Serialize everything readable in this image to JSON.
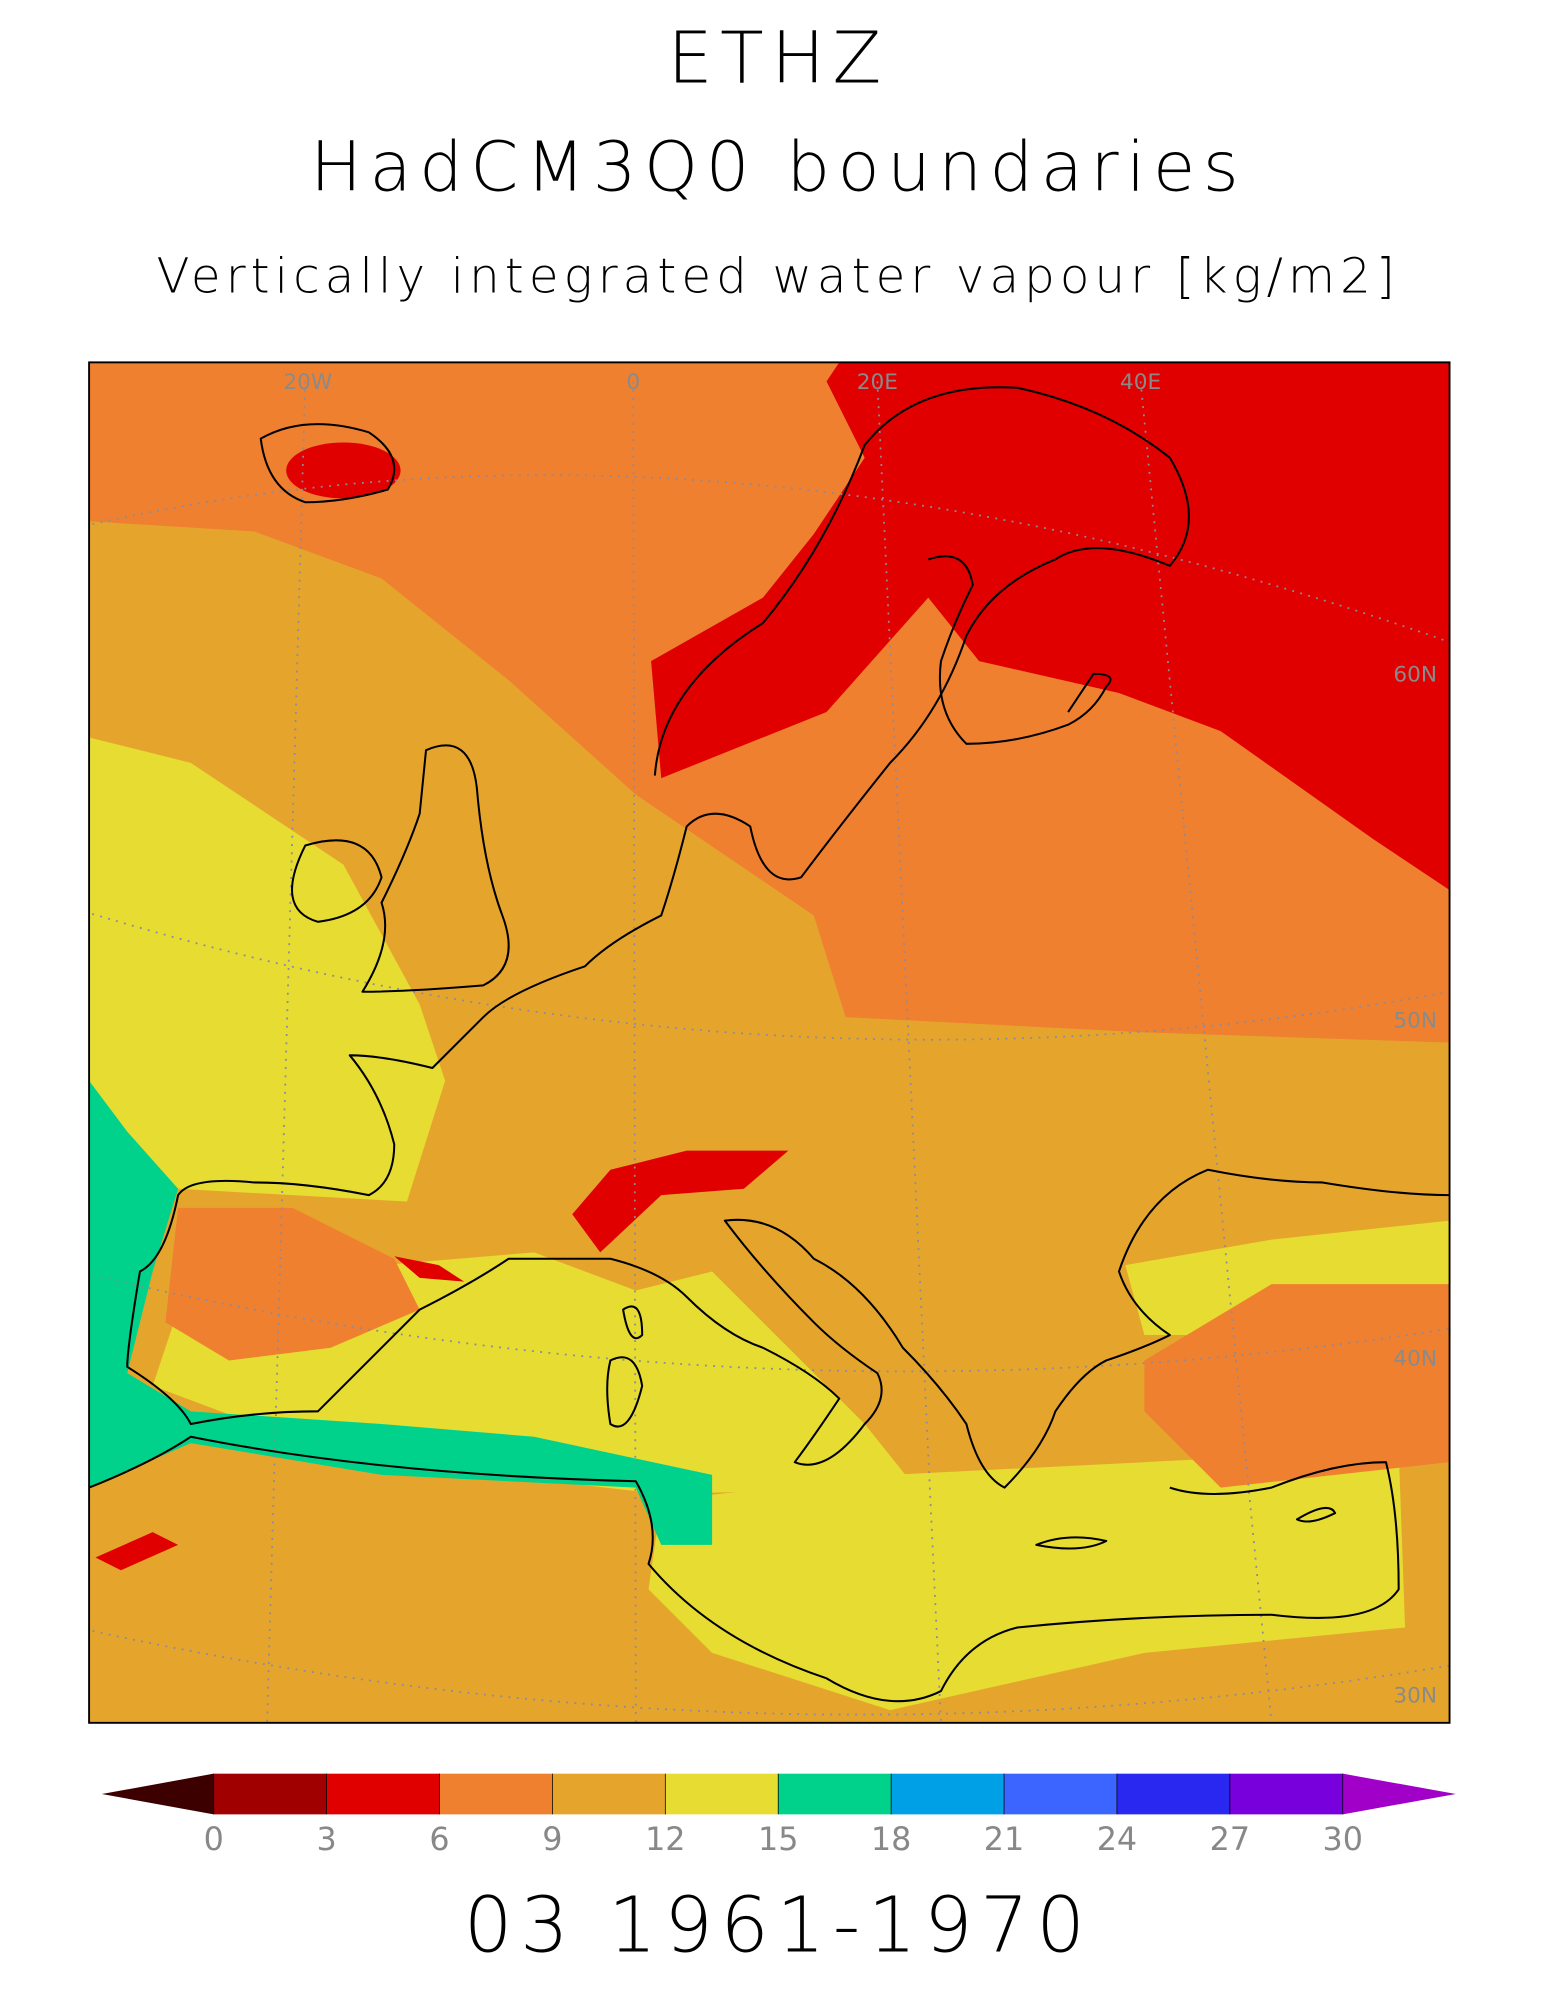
{
  "header": {
    "title": "ETHZ",
    "subtitle": "HadCM3Q0 boundaries",
    "variable": "Vertically integrated water vapour [kg/m2]"
  },
  "map": {
    "lon_labels": [
      "20W",
      "0",
      "20E",
      "40E"
    ],
    "lat_labels": [
      "60N",
      "50N",
      "40N",
      "30N"
    ]
  },
  "colorbar": {
    "ticks": [
      0,
      3,
      6,
      9,
      12,
      15,
      18,
      21,
      24,
      27,
      30
    ],
    "colors": [
      "#3c0000",
      "#a00000",
      "#e00000",
      "#ef8030",
      "#e5a52d",
      "#e6dc32",
      "#00d28c",
      "#00a0e6",
      "#3c64ff",
      "#2828f0",
      "#7800dc",
      "#a000c8"
    ]
  },
  "footer": "03 1961-1970"
}
